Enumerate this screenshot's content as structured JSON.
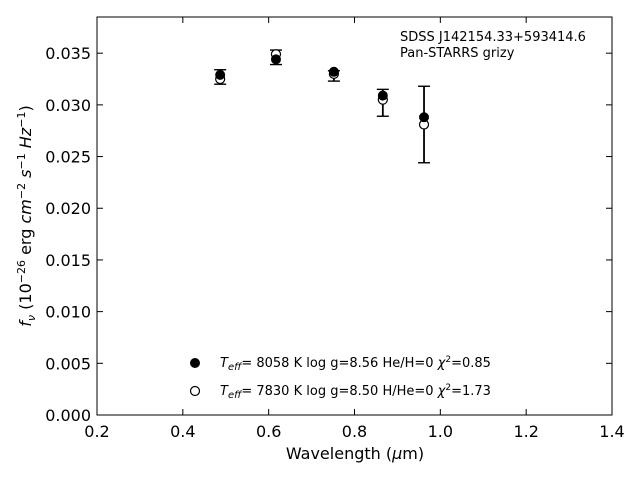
{
  "chart_data": {
    "type": "scatter",
    "xlabel": "Wavelength (μm)",
    "ylabel": "f_ν (10^−26 erg cm^−2 s^−1 Hz^−1)",
    "xlim": [
      0.2,
      1.4
    ],
    "ylim": [
      0.0,
      0.0385
    ],
    "x_ticks": [
      "0.2",
      "0.4",
      "0.6",
      "0.8",
      "1.0",
      "1.2",
      "1.4"
    ],
    "y_ticks": [
      "0.000",
      "0.005",
      "0.010",
      "0.015",
      "0.020",
      "0.025",
      "0.030",
      "0.035"
    ],
    "grid": false,
    "annotation": [
      "SDSS J142154.33+593414.6",
      "Pan-STARRS grizy"
    ],
    "observed": {
      "x": [
        0.487,
        0.617,
        0.752,
        0.866,
        0.962
      ],
      "y": [
        0.0327,
        0.0346,
        0.0328,
        0.0302,
        0.0281
      ],
      "err": [
        0.0007,
        0.0007,
        0.0005,
        0.0013,
        0.0037
      ]
    },
    "series": [
      {
        "name": "T_eff= 8058 K log g=8.56 He/H=0 χ²=0.85",
        "marker": "filled-circle",
        "x": [
          0.487,
          0.617,
          0.752,
          0.866,
          0.962
        ],
        "y": [
          0.0329,
          0.0344,
          0.0332,
          0.0309,
          0.0288
        ]
      },
      {
        "name": "T_eff= 7830 K log g=8.50 H/He=0 χ²=1.73",
        "marker": "open-circle",
        "x": [
          0.487,
          0.617,
          0.752,
          0.866,
          0.962
        ],
        "y": [
          0.0325,
          0.0349,
          0.033,
          0.0305,
          0.0281
        ]
      }
    ],
    "legend": {
      "placement": "lower-center",
      "entries": [
        {
          "teff": "8058 K",
          "logg": "log g=8.56",
          "comp": "He/H=0",
          "chi": "=0.85"
        },
        {
          "teff": "7830 K",
          "logg": "log g=8.50",
          "comp": "H/He=0",
          "chi": "=1.73"
        }
      ]
    }
  }
}
